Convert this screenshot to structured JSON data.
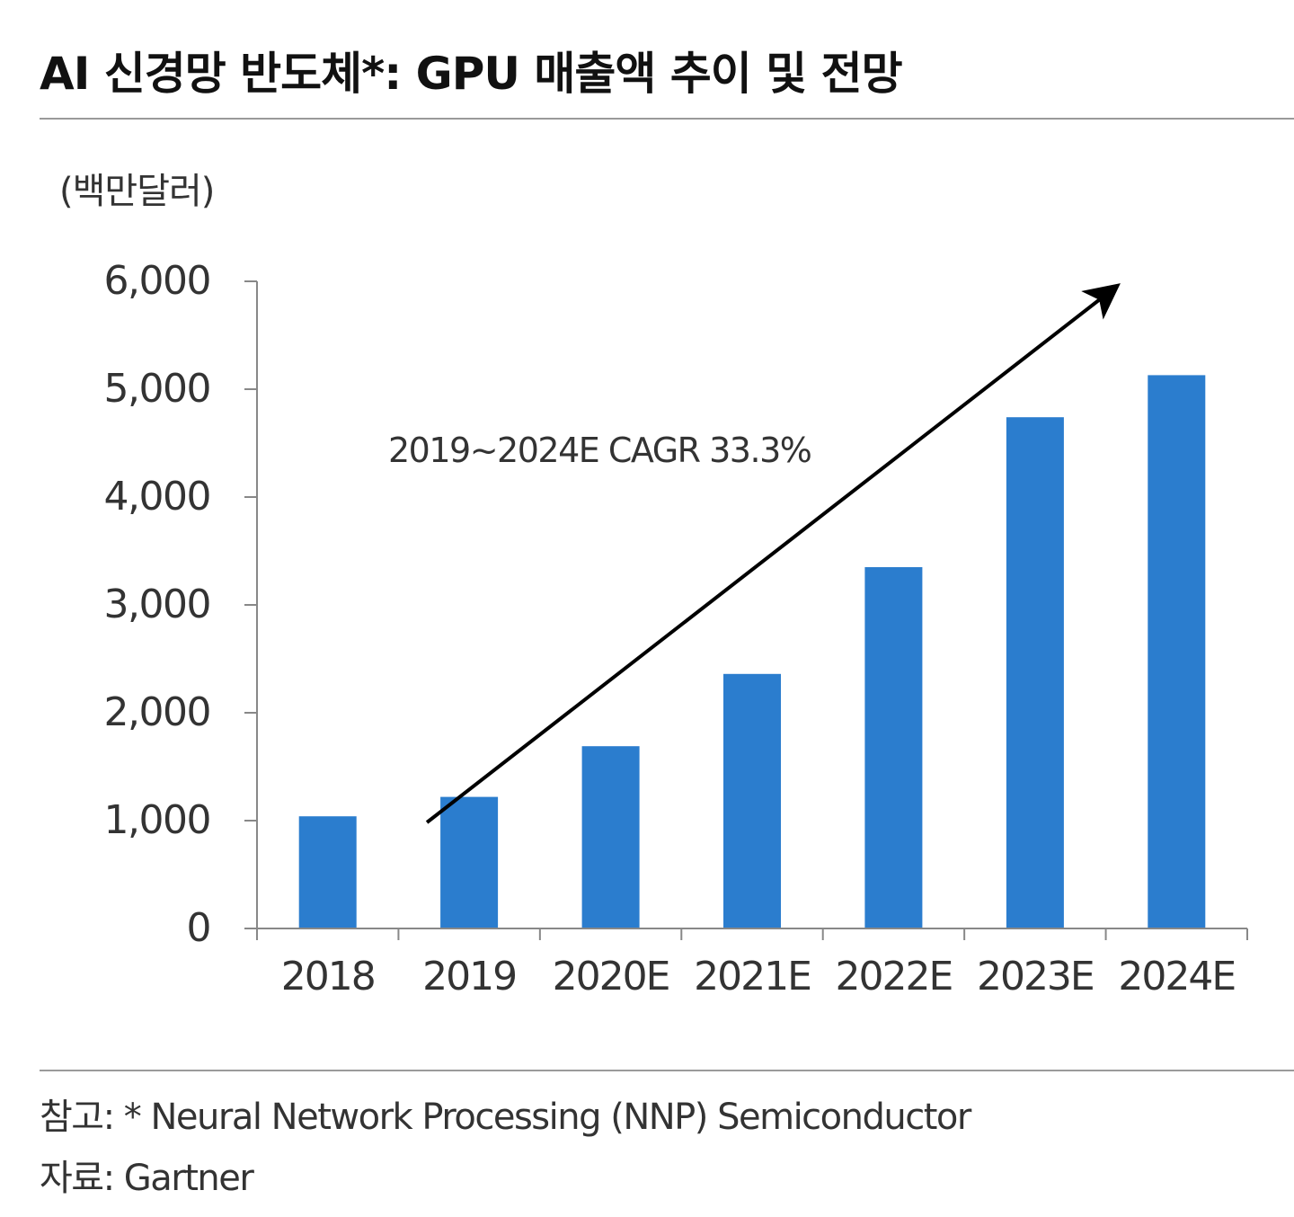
{
  "title": "AI 신경망 반도체*: GPU 매출액 추이 및 전망",
  "unit_label": "(백만달러)",
  "chart_data": {
    "type": "bar",
    "title": "AI 신경망 반도체*: GPU 매출액 추이 및 전망",
    "xlabel": "",
    "ylabel": "(백만달러)",
    "categories": [
      "2018",
      "2019",
      "2020E",
      "2021E",
      "2022E",
      "2023E",
      "2024E"
    ],
    "series": [
      {
        "name": "GPU 매출액",
        "values": [
          1040,
          1220,
          1690,
          2360,
          3350,
          4740,
          5130
        ]
      }
    ],
    "ylim": [
      0,
      6000
    ],
    "yticks": [
      0,
      1000,
      2000,
      3000,
      4000,
      5000,
      6000
    ],
    "ytick_labels": [
      "0",
      "1,000",
      "2,000",
      "3,000",
      "4,000",
      "5,000",
      "6,000"
    ],
    "grid": false,
    "legend": "none",
    "annotations": [
      {
        "text": "2019~2024E CAGR 33.3%",
        "arrow_from": [
          "2019",
          1300
        ],
        "arrow_to": [
          "2024E",
          6000
        ]
      }
    ]
  },
  "colors": {
    "bar": "#2b7dce",
    "axis": "#888888",
    "text": "#333333"
  },
  "footer": {
    "note": "참고: * Neural Network Processing (NNP) Semiconductor",
    "source": "자료: Gartner"
  }
}
